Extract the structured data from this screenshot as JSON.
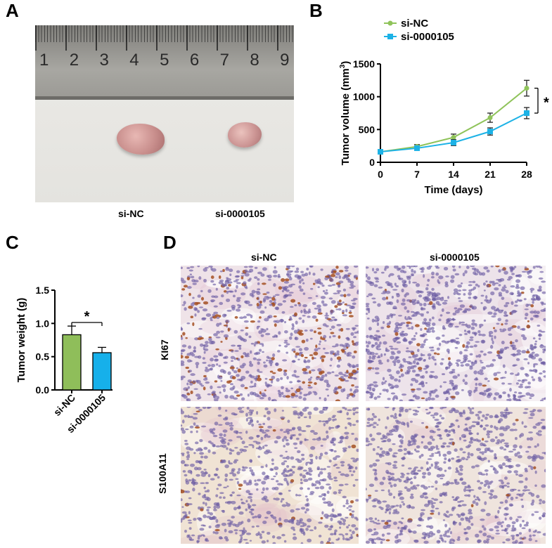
{
  "panels": {
    "A": {
      "letter": "A",
      "ruler_numbers": [
        "1",
        "2",
        "3",
        "4",
        "5",
        "6",
        "7",
        "8",
        "9"
      ],
      "labels": [
        "si-NC",
        "si-0000105"
      ]
    },
    "B": {
      "letter": "B"
    },
    "C": {
      "letter": "C"
    },
    "D": {
      "letter": "D",
      "col_labels": [
        "si-NC",
        "si-0000105"
      ],
      "row_labels": [
        "KI67",
        "S100A11"
      ]
    }
  },
  "chart_data": [
    {
      "id": "B",
      "type": "line",
      "x": [
        0,
        7,
        14,
        21,
        28
      ],
      "xticks": [
        "0",
        "7",
        "14",
        "21",
        "28"
      ],
      "yticks": [
        "0",
        "500",
        "1000",
        "1500"
      ],
      "ylim": [
        0,
        1500
      ],
      "xlabel": "Time (days)",
      "ylabel": "Tumor  volume (mm",
      "ylabel_sup": "3",
      "ylabel_close": ")",
      "series": [
        {
          "name": "si-NC",
          "color": "#8fc35a",
          "marker": "circle",
          "values": [
            160,
            240,
            380,
            680,
            1130
          ],
          "err": [
            20,
            30,
            50,
            70,
            120
          ]
        },
        {
          "name": "si-0000105",
          "color": "#1cb2e6",
          "marker": "square",
          "values": [
            160,
            215,
            300,
            470,
            750
          ],
          "err": [
            20,
            25,
            45,
            55,
            85
          ]
        }
      ],
      "sig": "*"
    },
    {
      "id": "C",
      "type": "bar",
      "categories": [
        "si-NC",
        "si-0000105"
      ],
      "values": [
        0.83,
        0.56
      ],
      "err": [
        0.13,
        0.08
      ],
      "colors": [
        "#8fbe5a",
        "#16b0ea"
      ],
      "ylim": [
        0,
        1.5
      ],
      "yticks": [
        "0.0",
        "0.5",
        "1.0",
        "1.5"
      ],
      "ylabel": "Tumor weight (g)",
      "sig": "*"
    }
  ]
}
